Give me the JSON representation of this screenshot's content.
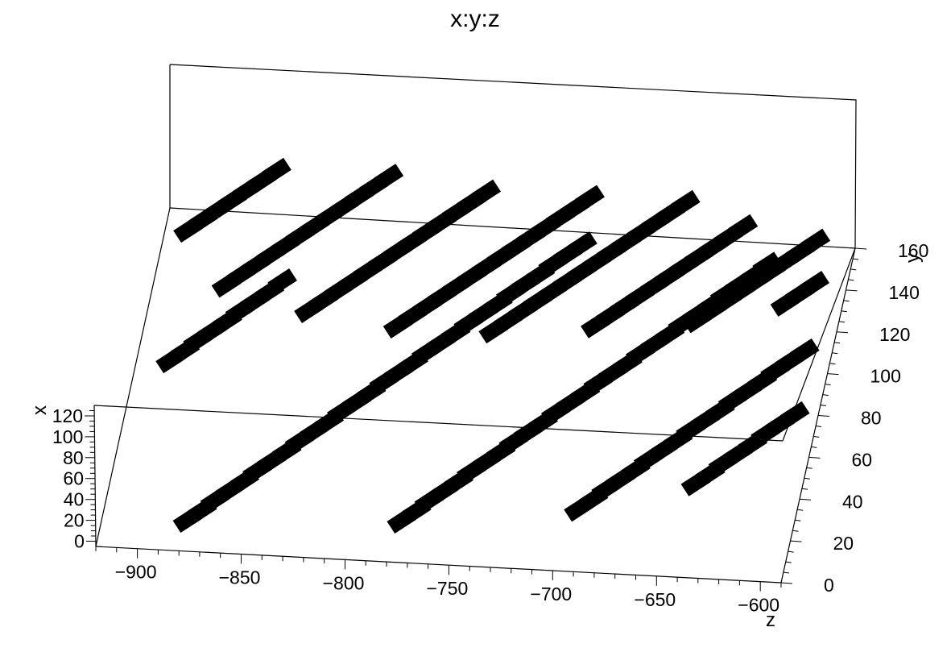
{
  "chart_data": {
    "type": "scatter",
    "title": "x:y:z",
    "xlabel": "x",
    "ylabel": "y",
    "zlabel": "z",
    "x_ticks": [
      0,
      20,
      40,
      60,
      80,
      100,
      120
    ],
    "y_ticks": [
      0,
      20,
      40,
      60,
      80,
      100,
      120,
      140,
      160
    ],
    "z_ticks": [
      -900,
      -850,
      -800,
      -750,
      -700,
      -650,
      -600
    ],
    "xlim": [
      -5,
      130
    ],
    "ylim": [
      0,
      160
    ],
    "zlim": [
      -920,
      -590
    ],
    "grid": false,
    "colors": {
      "points": "#000000",
      "frame": "#000000",
      "background": "#ffffff"
    },
    "series": [
      {
        "values": [
          [
            5,
            85,
            -903
          ],
          [
            5,
            90,
            -897
          ],
          [
            5,
            95,
            -892
          ],
          [
            5,
            100,
            -886
          ],
          [
            5,
            105,
            -880
          ],
          [
            5,
            110,
            -875
          ],
          [
            5,
            115,
            -869
          ],
          [
            5,
            120,
            -863
          ],
          [
            5,
            125,
            -858
          ],
          [
            5,
            10,
            -878
          ],
          [
            5,
            15,
            -872
          ],
          [
            5,
            20,
            -867
          ],
          [
            5,
            25,
            -861
          ],
          [
            5,
            30,
            -855
          ],
          [
            5,
            35,
            -850
          ],
          [
            5,
            40,
            -844
          ],
          [
            5,
            45,
            -838
          ],
          [
            5,
            50,
            -833
          ],
          [
            5,
            55,
            -827
          ],
          [
            5,
            60,
            -821
          ],
          [
            5,
            65,
            -816
          ],
          [
            5,
            70,
            -810
          ],
          [
            5,
            75,
            -804
          ],
          [
            5,
            80,
            -799
          ],
          [
            5,
            85,
            -793
          ],
          [
            5,
            90,
            -787
          ],
          [
            5,
            95,
            -782
          ],
          [
            5,
            100,
            -776
          ],
          [
            5,
            105,
            -770
          ],
          [
            5,
            110,
            -765
          ],
          [
            5,
            115,
            -759
          ],
          [
            5,
            120,
            -753
          ],
          [
            5,
            125,
            -748
          ],
          [
            5,
            130,
            -742
          ],
          [
            5,
            135,
            -736
          ],
          [
            5,
            140,
            -731
          ],
          [
            5,
            145,
            -725
          ],
          [
            5,
            150,
            -719
          ],
          [
            5,
            15,
            -776
          ],
          [
            5,
            20,
            -770
          ],
          [
            5,
            25,
            -765
          ],
          [
            5,
            30,
            -759
          ],
          [
            5,
            35,
            -753
          ],
          [
            5,
            40,
            -748
          ],
          [
            5,
            45,
            -742
          ],
          [
            5,
            50,
            -736
          ],
          [
            5,
            55,
            -731
          ],
          [
            5,
            60,
            -725
          ],
          [
            5,
            65,
            -719
          ],
          [
            5,
            70,
            -714
          ],
          [
            5,
            75,
            -708
          ],
          [
            5,
            80,
            -702
          ],
          [
            5,
            85,
            -697
          ],
          [
            5,
            90,
            -691
          ],
          [
            5,
            95,
            -685
          ],
          [
            5,
            100,
            -680
          ],
          [
            5,
            105,
            -674
          ],
          [
            5,
            110,
            -668
          ],
          [
            5,
            115,
            -663
          ],
          [
            5,
            120,
            -657
          ],
          [
            5,
            125,
            -651
          ],
          [
            5,
            130,
            -646
          ],
          [
            5,
            135,
            -640
          ],
          [
            5,
            140,
            -634
          ],
          [
            5,
            145,
            -629
          ],
          [
            5,
            25,
            -693
          ],
          [
            5,
            30,
            -687
          ],
          [
            5,
            35,
            -682
          ],
          [
            5,
            40,
            -676
          ],
          [
            5,
            45,
            -670
          ],
          [
            5,
            50,
            -665
          ],
          [
            5,
            55,
            -659
          ],
          [
            5,
            60,
            -653
          ],
          [
            5,
            65,
            -648
          ],
          [
            5,
            70,
            -642
          ],
          [
            5,
            75,
            -636
          ],
          [
            5,
            80,
            -631
          ],
          [
            5,
            85,
            -625
          ],
          [
            5,
            90,
            -619
          ],
          [
            5,
            95,
            -614
          ],
          [
            5,
            100,
            -608
          ],
          [
            5,
            105,
            -602
          ],
          [
            5,
            40,
            -640
          ],
          [
            5,
            45,
            -634
          ],
          [
            5,
            50,
            -629
          ],
          [
            5,
            55,
            -623
          ],
          [
            5,
            60,
            -617
          ],
          [
            5,
            65,
            -612
          ],
          [
            5,
            70,
            -606
          ],
          [
            5,
            75,
            -600
          ],
          [
            60,
            120,
            -902
          ],
          [
            60,
            125,
            -896
          ],
          [
            60,
            130,
            -890
          ],
          [
            60,
            135,
            -884
          ],
          [
            60,
            140,
            -878
          ],
          [
            60,
            145,
            -872
          ],
          [
            60,
            150,
            -866
          ],
          [
            60,
            95,
            -878
          ],
          [
            60,
            100,
            -872
          ],
          [
            60,
            105,
            -866
          ],
          [
            60,
            110,
            -860
          ],
          [
            60,
            115,
            -854
          ],
          [
            60,
            120,
            -848
          ],
          [
            60,
            125,
            -842
          ],
          [
            60,
            130,
            -836
          ],
          [
            60,
            135,
            -830
          ],
          [
            60,
            140,
            -824
          ],
          [
            60,
            145,
            -818
          ],
          [
            60,
            150,
            -812
          ],
          [
            60,
            85,
            -836
          ],
          [
            60,
            90,
            -830
          ],
          [
            60,
            95,
            -824
          ],
          [
            60,
            100,
            -818
          ],
          [
            60,
            105,
            -812
          ],
          [
            60,
            110,
            -806
          ],
          [
            60,
            115,
            -800
          ],
          [
            60,
            120,
            -794
          ],
          [
            60,
            125,
            -788
          ],
          [
            60,
            130,
            -782
          ],
          [
            60,
            135,
            -776
          ],
          [
            60,
            140,
            -770
          ],
          [
            60,
            145,
            -764
          ],
          [
            60,
            80,
            -792
          ],
          [
            60,
            85,
            -786
          ],
          [
            60,
            90,
            -780
          ],
          [
            60,
            95,
            -774
          ],
          [
            60,
            100,
            -768
          ],
          [
            60,
            105,
            -762
          ],
          [
            60,
            110,
            -756
          ],
          [
            60,
            115,
            -750
          ],
          [
            60,
            120,
            -744
          ],
          [
            60,
            125,
            -738
          ],
          [
            60,
            130,
            -732
          ],
          [
            60,
            135,
            -726
          ],
          [
            60,
            140,
            -720
          ],
          [
            60,
            145,
            -714
          ],
          [
            60,
            80,
            -746
          ],
          [
            60,
            85,
            -740
          ],
          [
            60,
            90,
            -734
          ],
          [
            60,
            95,
            -728
          ],
          [
            60,
            100,
            -722
          ],
          [
            60,
            105,
            -716
          ],
          [
            60,
            110,
            -710
          ],
          [
            60,
            115,
            -704
          ],
          [
            60,
            120,
            -698
          ],
          [
            60,
            125,
            -692
          ],
          [
            60,
            130,
            -686
          ],
          [
            60,
            135,
            -680
          ],
          [
            60,
            140,
            -674
          ],
          [
            60,
            145,
            -668
          ],
          [
            60,
            85,
            -698
          ],
          [
            60,
            90,
            -692
          ],
          [
            60,
            95,
            -686
          ],
          [
            60,
            100,
            -680
          ],
          [
            60,
            105,
            -674
          ],
          [
            60,
            110,
            -668
          ],
          [
            60,
            115,
            -662
          ],
          [
            60,
            120,
            -656
          ],
          [
            60,
            125,
            -650
          ],
          [
            60,
            130,
            -644
          ],
          [
            60,
            135,
            -638
          ],
          [
            60,
            90,
            -650
          ],
          [
            60,
            95,
            -644
          ],
          [
            60,
            100,
            -638
          ],
          [
            60,
            105,
            -632
          ],
          [
            60,
            110,
            -626
          ],
          [
            60,
            115,
            -620
          ],
          [
            60,
            120,
            -614
          ],
          [
            60,
            125,
            -608
          ],
          [
            60,
            130,
            -602
          ],
          [
            60,
            100,
            -610
          ],
          [
            60,
            105,
            -604
          ],
          [
            60,
            110,
            -598
          ]
        ]
      }
    ]
  }
}
